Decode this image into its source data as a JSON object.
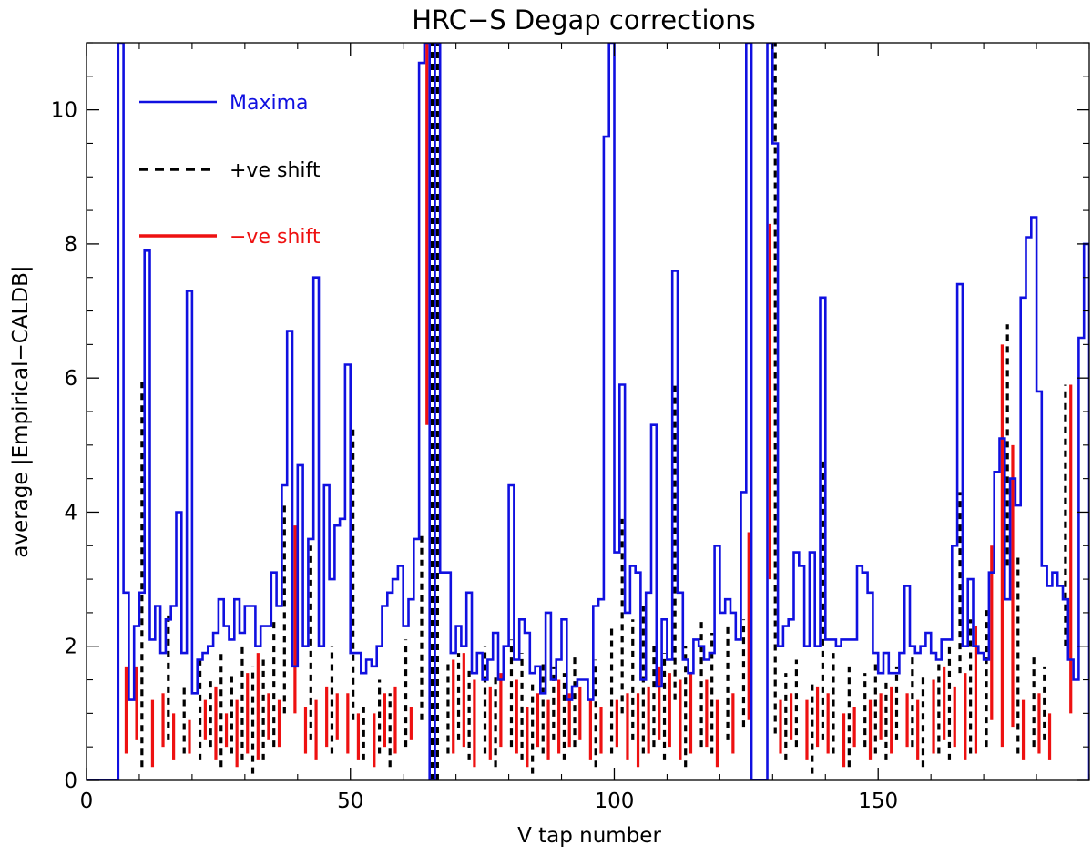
{
  "chart_data": {
    "type": "line",
    "title": "HRC−S Degap corrections",
    "xlabel": "V tap number",
    "ylabel": "average |Empirical−CALDB|",
    "xlim": [
      0,
      190
    ],
    "ylim": [
      0,
      11
    ],
    "x_ticks": [
      0,
      50,
      100,
      150
    ],
    "y_ticks": [
      0,
      2,
      4,
      6,
      8,
      10
    ],
    "x_tick_labels": [
      "0",
      "50",
      "100",
      "150"
    ],
    "y_tick_labels": [
      "0",
      "2",
      "4",
      "6",
      "8",
      "10"
    ],
    "grid": false,
    "legend_position": "top-left",
    "legend": {
      "maxima": "Maxima",
      "positive": "+ve shift",
      "negative": "−ve shift"
    },
    "colors": {
      "maxima": "#1010e0",
      "positive": "#000000",
      "negative": "#ee1111",
      "axis": "#000000"
    },
    "series": [
      {
        "name": "Maxima",
        "style": "histogram-step",
        "x_start": 0,
        "bin_width": 1,
        "values": [
          0,
          0,
          0,
          0,
          0,
          0,
          11,
          2.8,
          1.2,
          2.3,
          2.8,
          7.9,
          2.1,
          2.6,
          1.9,
          2.4,
          2.6,
          4.0,
          1.9,
          7.3,
          1.3,
          1.8,
          1.9,
          2.0,
          2.2,
          2.7,
          2.3,
          2.1,
          2.7,
          2.2,
          2.6,
          2.6,
          2.0,
          2.3,
          2.3,
          3.1,
          2.6,
          4.4,
          6.7,
          1.7,
          4.7,
          2.0,
          3.6,
          7.5,
          2.0,
          4.4,
          3.0,
          3.8,
          3.9,
          6.2,
          1.9,
          1.9,
          1.6,
          1.8,
          1.7,
          2.0,
          2.6,
          2.8,
          3.0,
          3.2,
          2.3,
          2.7,
          3.6,
          10.7,
          11,
          0,
          11,
          3.1,
          3.1,
          1.9,
          2.3,
          2.0,
          2.8,
          1.6,
          1.9,
          1.5,
          1.8,
          2.2,
          1.5,
          2.0,
          4.4,
          1.8,
          2.4,
          2.2,
          1.6,
          1.7,
          1.3,
          2.5,
          1.5,
          1.8,
          2.4,
          1.2,
          1.4,
          1.5,
          1.5,
          1.2,
          2.6,
          2.7,
          9.6,
          11,
          3.4,
          5.9,
          2.5,
          3.2,
          3.1,
          1.5,
          2.8,
          5.3,
          1.4,
          2.4,
          1.8,
          7.6,
          2.8,
          1.8,
          1.6,
          2.1,
          2.0,
          1.8,
          1.9,
          3.5,
          2.5,
          2.7,
          2.5,
          2.1,
          4.3,
          11,
          0,
          0,
          0,
          11,
          9.5,
          2.0,
          2.3,
          2.4,
          3.4,
          3.2,
          2.0,
          3.4,
          2.0,
          7.2,
          2.1,
          2.1,
          2.0,
          2.1,
          2.1,
          2.1,
          3.2,
          3.1,
          2.8,
          1.9,
          1.6,
          1.9,
          1.6,
          1.6,
          1.9,
          2.9,
          2.0,
          1.9,
          2.0,
          2.2,
          1.9,
          1.8,
          2.1,
          2.1,
          3.5,
          7.4,
          2.0,
          3.0,
          2.0,
          1.9,
          1.8,
          3.1,
          4.6,
          5.1,
          2.7,
          4.5,
          4.1,
          7.2,
          8.1,
          8.4,
          5.8,
          3.2,
          2.9,
          3.1,
          2.9,
          2.7,
          1.8,
          1.5,
          6.6,
          8.0,
          0
        ]
      },
      {
        "name": "+ve shift",
        "style": "dashed-bars",
        "x": [
          10,
          15,
          18,
          21,
          23,
          25,
          27,
          29,
          31,
          33,
          35,
          37,
          42,
          46,
          50,
          52,
          55,
          57,
          60,
          63,
          65,
          66,
          68,
          70,
          72,
          75,
          77,
          80,
          82,
          84,
          86,
          88,
          90,
          92,
          96,
          99,
          101,
          103,
          105,
          107,
          109,
          111,
          113,
          116,
          118,
          121,
          124,
          130,
          132,
          134,
          137,
          139,
          141,
          144,
          147,
          149,
          151,
          153,
          156,
          158,
          161,
          163,
          165,
          167,
          170,
          174,
          176,
          179,
          181,
          185
        ],
        "low": [
          0.2,
          0.6,
          0.4,
          0.3,
          0.5,
          0.2,
          0.4,
          0.3,
          0.1,
          0.3,
          0.5,
          1.0,
          0.6,
          0.4,
          0.9,
          0.3,
          0.4,
          0.2,
          0.5,
          0.9,
          0.0,
          0.0,
          0.4,
          0.6,
          0.3,
          0.4,
          0.2,
          0.5,
          0.3,
          0.1,
          0.4,
          0.6,
          0.3,
          0.5,
          0.2,
          0.4,
          1.0,
          0.6,
          0.4,
          0.5,
          0.3,
          1.2,
          0.2,
          0.5,
          0.4,
          0.6,
          0.8,
          0.7,
          0.3,
          0.5,
          0.1,
          0.6,
          0.4,
          0.2,
          0.5,
          0.4,
          0.3,
          0.6,
          0.5,
          0.2,
          0.4,
          0.3,
          1.6,
          0.4,
          0.5,
          3.2,
          0.4,
          0.5,
          0.6,
          2.0
        ],
        "high": [
          6.0,
          2.5,
          1.4,
          1.8,
          1.5,
          1.9,
          1.6,
          2.0,
          1.7,
          1.8,
          2.4,
          4.1,
          3.5,
          2.0,
          5.3,
          1.1,
          1.5,
          1.3,
          2.1,
          3.7,
          11,
          11,
          1.8,
          1.9,
          1.7,
          2.0,
          1.6,
          2.1,
          1.9,
          1.5,
          1.8,
          1.7,
          1.6,
          1.9,
          1.8,
          2.3,
          3.9,
          2.4,
          2.6,
          2.0,
          1.9,
          5.9,
          2.0,
          2.4,
          2.2,
          2.3,
          2.4,
          11,
          1.6,
          1.8,
          1.5,
          4.8,
          1.9,
          1.7,
          1.6,
          1.8,
          1.5,
          1.7,
          1.9,
          1.6,
          1.8,
          2.0,
          4.3,
          2.4,
          2.6,
          6.8,
          3.4,
          1.9,
          1.7,
          5.9
        ]
      },
      {
        "name": "−ve shift",
        "style": "solid-bars",
        "x": [
          7,
          9,
          12,
          14,
          16,
          19,
          22,
          24,
          26,
          28,
          30,
          32,
          34,
          36,
          39,
          41,
          43,
          45,
          47,
          49,
          51,
          54,
          56,
          58,
          61,
          64,
          69,
          71,
          73,
          76,
          78,
          81,
          83,
          85,
          87,
          89,
          91,
          93,
          95,
          97,
          100,
          102,
          104,
          106,
          108,
          110,
          112,
          114,
          117,
          119,
          122,
          125,
          129,
          131,
          133,
          136,
          138,
          140,
          143,
          145,
          148,
          150,
          152,
          155,
          157,
          160,
          162,
          164,
          166,
          168,
          171,
          173,
          175,
          177,
          180,
          182,
          186
        ],
        "low": [
          0.4,
          0.6,
          0.2,
          0.5,
          0.3,
          0.4,
          0.6,
          0.3,
          0.5,
          0.2,
          0.4,
          0.3,
          0.6,
          0.5,
          1.0,
          0.4,
          0.3,
          0.5,
          0.6,
          0.4,
          0.3,
          0.2,
          0.5,
          0.4,
          0.6,
          5.3,
          0.4,
          0.5,
          0.2,
          0.3,
          0.5,
          0.4,
          0.2,
          0.5,
          0.3,
          0.4,
          0.5,
          0.6,
          0.3,
          0.4,
          0.5,
          0.3,
          0.2,
          0.4,
          0.6,
          0.5,
          0.3,
          0.4,
          0.5,
          0.2,
          0.4,
          0.9,
          3.0,
          0.4,
          0.6,
          0.3,
          0.5,
          0.4,
          0.2,
          0.5,
          0.3,
          0.6,
          0.4,
          0.5,
          0.3,
          0.4,
          0.6,
          0.5,
          0.3,
          0.4,
          0.9,
          0.5,
          0.8,
          0.3,
          0.4,
          0.3,
          1.0
        ],
        "high": [
          1.7,
          1.7,
          1.2,
          1.3,
          1.0,
          0.9,
          1.2,
          1.4,
          1.0,
          1.2,
          1.6,
          1.9,
          1.3,
          1.2,
          3.8,
          1.1,
          1.2,
          1.4,
          1.3,
          1.3,
          1.0,
          1.0,
          1.3,
          1.4,
          1.1,
          11,
          1.8,
          1.9,
          1.5,
          1.4,
          1.6,
          1.5,
          1.1,
          1.3,
          1.2,
          1.5,
          1.3,
          1.4,
          1.2,
          1.1,
          1.2,
          1.3,
          1.3,
          1.4,
          1.7,
          1.6,
          1.5,
          1.6,
          1.5,
          1.2,
          1.3,
          3.7,
          8.3,
          1.2,
          1.3,
          1.2,
          1.4,
          1.3,
          1.0,
          1.1,
          1.2,
          1.3,
          1.4,
          1.3,
          1.2,
          1.5,
          1.7,
          1.4,
          1.6,
          2.3,
          3.5,
          6.5,
          5.0,
          1.2,
          1.3,
          1.0,
          5.9
        ]
      }
    ]
  }
}
